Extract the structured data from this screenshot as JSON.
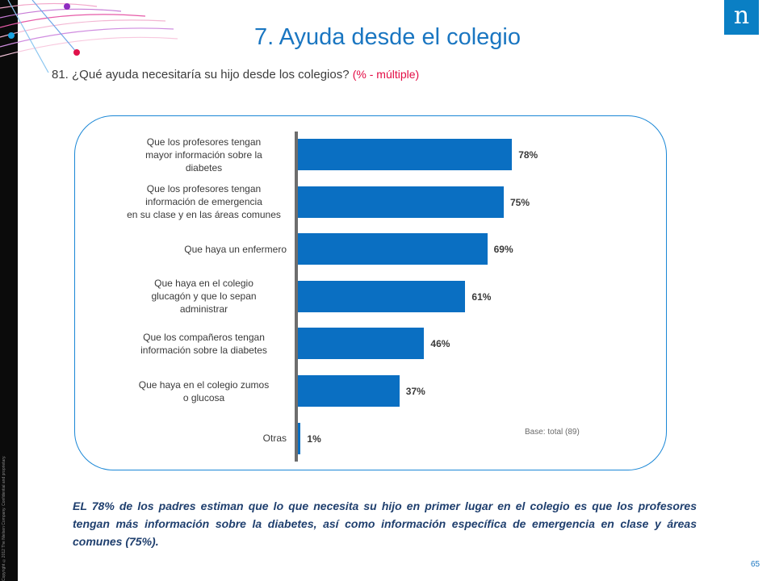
{
  "header": {
    "title": "7. Ayuda desde el colegio",
    "subtitle": "81. ¿Qué ayuda necesitaría su hijo desde los colegios?",
    "subtitle_note": "(% - múltiple)"
  },
  "logo": {
    "glyph": "n",
    "color": "#0a7fc4"
  },
  "copyright": "Copyright ©2012 The Nielsen Company. Confidential and proprietary.",
  "colors": {
    "bar": "#0a6fc2",
    "title": "#1a76c1",
    "accent": "#e30b44"
  },
  "chart_data": {
    "type": "bar",
    "orientation": "horizontal",
    "categories": [
      [
        "Que los profesores tengan",
        "mayor información sobre la",
        "diabetes"
      ],
      [
        "Que los profesores tengan",
        "información de emergencia",
        "en su clase y en las áreas comunes"
      ],
      [
        "Que haya un enfermero"
      ],
      [
        "Que haya en el colegio",
        "glucagón y que lo sepan",
        "administrar"
      ],
      [
        "Que los compañeros tengan",
        "información sobre la diabetes"
      ],
      [
        "Que haya en el colegio zumos",
        "o glucosa"
      ],
      [
        "Otras"
      ]
    ],
    "values": [
      78,
      75,
      69,
      61,
      46,
      37,
      1
    ],
    "value_labels": [
      "78%",
      "75%",
      "69%",
      "61%",
      "46%",
      "37%",
      "1%"
    ],
    "xlim": [
      0,
      100
    ],
    "grid": false,
    "legend": "none",
    "note": "Base: total (89)"
  },
  "conclusion": "EL 78% de los padres estiman que lo que necesita su hijo en primer lugar en el colegio es que los profesores tengan más información sobre la diabetes, así como información específica de emergencia en clase y áreas comunes (75%).",
  "page_number": "65"
}
